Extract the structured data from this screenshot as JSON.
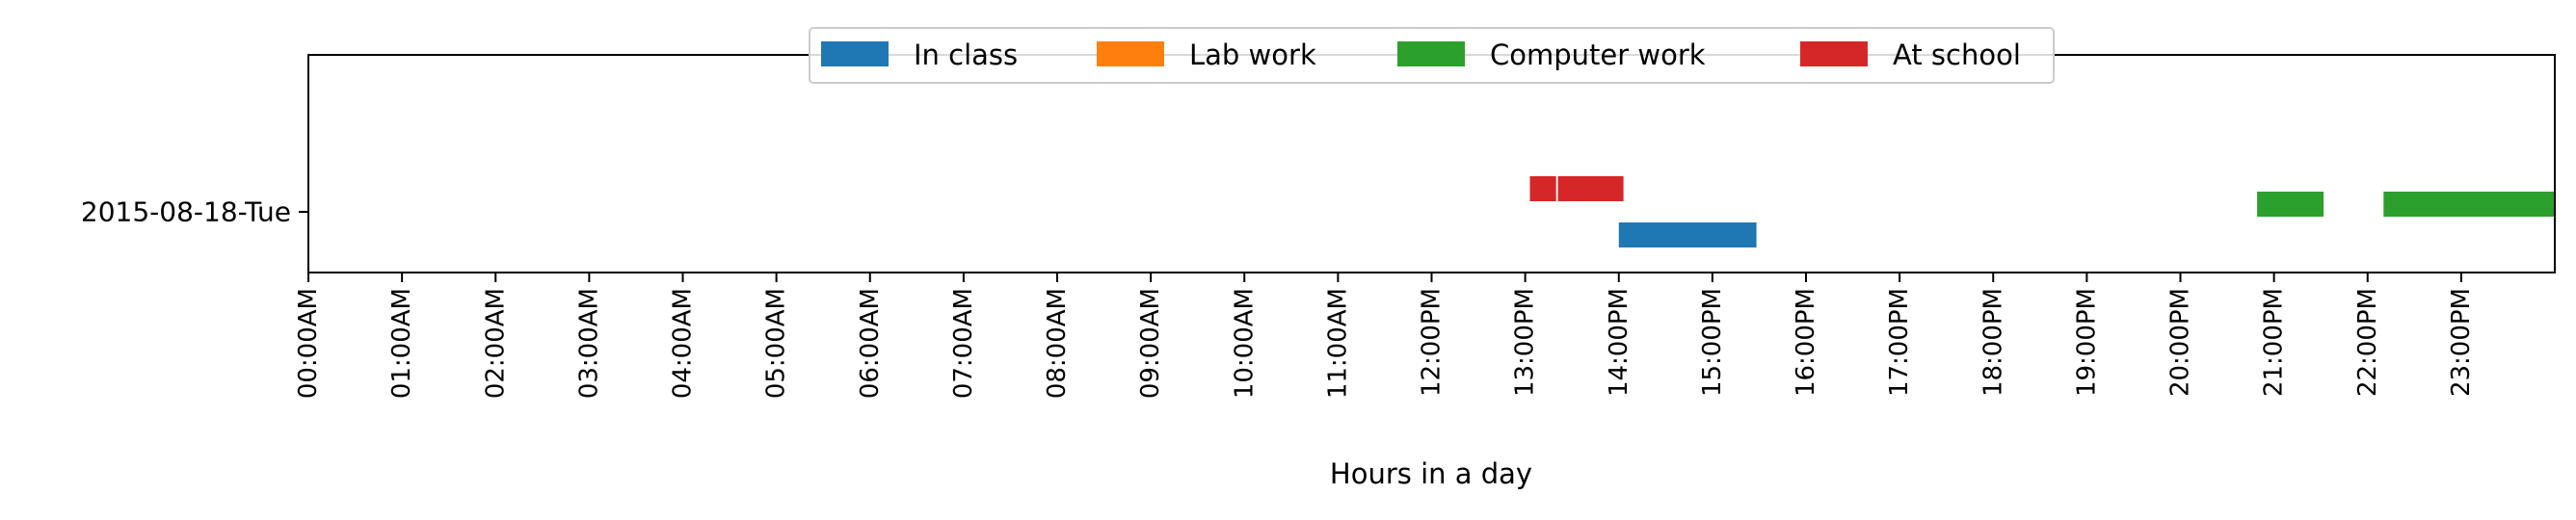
{
  "chart_data": {
    "type": "bar",
    "orientation": "horizontal-timeline",
    "title": "",
    "xlabel": "Hours in a day",
    "ylabel": "",
    "xlim": [
      0,
      24
    ],
    "grid": false,
    "legend_placement": "top-center",
    "row_labels": [
      "2015-08-18-Tue"
    ],
    "x_tick_labels": [
      "00:00AM",
      "01:00AM",
      "02:00AM",
      "03:00AM",
      "04:00AM",
      "05:00AM",
      "06:00AM",
      "07:00AM",
      "08:00AM",
      "09:00AM",
      "10:00AM",
      "11:00AM",
      "12:00PM",
      "13:00PM",
      "14:00PM",
      "15:00PM",
      "16:00PM",
      "17:00PM",
      "18:00PM",
      "19:00PM",
      "20:00PM",
      "21:00PM",
      "22:00PM",
      "23:00PM"
    ],
    "series": [
      {
        "name": "In class",
        "color": "#1f77b4",
        "intervals": [
          {
            "row": 0,
            "start": 14.0,
            "end": 15.47
          }
        ]
      },
      {
        "name": "Lab work",
        "color": "#ff7f0e",
        "intervals": []
      },
      {
        "name": "Computer work",
        "color": "#2ca02c",
        "intervals": [
          {
            "row": 0,
            "start": 20.82,
            "end": 21.53
          },
          {
            "row": 0,
            "start": 22.17,
            "end": 24.0
          }
        ]
      },
      {
        "name": "At school",
        "color": "#d62728",
        "intervals": [
          {
            "row": 0,
            "start": 13.05,
            "end": 13.33
          },
          {
            "row": 0,
            "start": 13.35,
            "end": 14.05
          }
        ]
      }
    ]
  }
}
